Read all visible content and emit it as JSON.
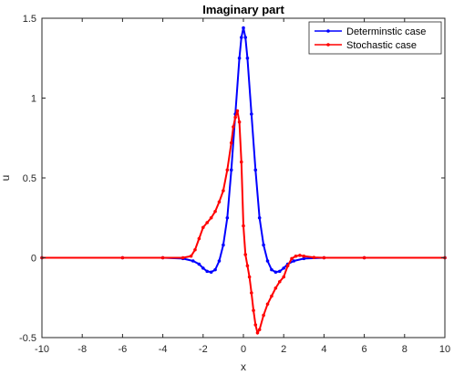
{
  "chart_data": {
    "type": "line",
    "title": "Imaginary part",
    "xlabel": "x",
    "ylabel": "u",
    "xlim": [
      -10,
      10
    ],
    "ylim": [
      -0.5,
      1.5
    ],
    "xticks": [
      -10,
      -8,
      -6,
      -4,
      -2,
      0,
      2,
      4,
      6,
      8,
      10
    ],
    "yticks": [
      -0.5,
      0,
      0.5,
      1,
      1.5
    ],
    "xtick_labels": [
      "-10",
      "-8",
      "-6",
      "-4",
      "-2",
      "0",
      "2",
      "4",
      "6",
      "8",
      "10"
    ],
    "ytick_labels": [
      "-0.5",
      "0",
      "0.5",
      "1",
      "1.5"
    ],
    "grid": false,
    "legend_position": "top-right",
    "series": [
      {
        "name": "Determinstic case",
        "color": "#0000ff",
        "marker": "dot",
        "x": [
          -10,
          -6,
          -4,
          -3,
          -2.5,
          -2.2,
          -2.0,
          -1.8,
          -1.6,
          -1.4,
          -1.2,
          -1.0,
          -0.8,
          -0.6,
          -0.4,
          -0.2,
          -0.1,
          0,
          0.1,
          0.2,
          0.4,
          0.6,
          0.8,
          1.0,
          1.2,
          1.4,
          1.6,
          1.8,
          2.0,
          2.2,
          2.5,
          3,
          4,
          6,
          10
        ],
        "y": [
          0,
          0,
          0,
          -0.005,
          -0.02,
          -0.04,
          -0.065,
          -0.085,
          -0.09,
          -0.075,
          -0.02,
          0.08,
          0.25,
          0.55,
          0.9,
          1.25,
          1.38,
          1.44,
          1.38,
          1.25,
          0.9,
          0.55,
          0.25,
          0.08,
          -0.02,
          -0.075,
          -0.09,
          -0.085,
          -0.065,
          -0.04,
          -0.02,
          -0.005,
          0,
          0,
          0
        ]
      },
      {
        "name": "Stochastic case",
        "color": "#ff0000",
        "marker": "dot",
        "x": [
          -10,
          -6,
          -4,
          -3,
          -2.6,
          -2.4,
          -2.2,
          -2.0,
          -1.8,
          -1.6,
          -1.4,
          -1.2,
          -1.0,
          -0.8,
          -0.6,
          -0.5,
          -0.4,
          -0.3,
          -0.2,
          -0.1,
          0,
          0.1,
          0.2,
          0.3,
          0.4,
          0.5,
          0.6,
          0.7,
          0.8,
          1.0,
          1.2,
          1.4,
          1.6,
          1.8,
          2.0,
          2.2,
          2.4,
          2.6,
          2.8,
          3.0,
          3.5,
          4,
          6,
          10
        ],
        "y": [
          0,
          0,
          0,
          0,
          0.01,
          0.05,
          0.12,
          0.19,
          0.22,
          0.25,
          0.29,
          0.35,
          0.42,
          0.55,
          0.72,
          0.82,
          0.88,
          0.92,
          0.85,
          0.6,
          0.2,
          0.02,
          -0.05,
          -0.12,
          -0.22,
          -0.33,
          -0.42,
          -0.47,
          -0.45,
          -0.36,
          -0.29,
          -0.24,
          -0.19,
          -0.15,
          -0.12,
          -0.05,
          -0.005,
          0.01,
          0.015,
          0.01,
          0.002,
          0,
          0,
          0
        ]
      }
    ]
  }
}
